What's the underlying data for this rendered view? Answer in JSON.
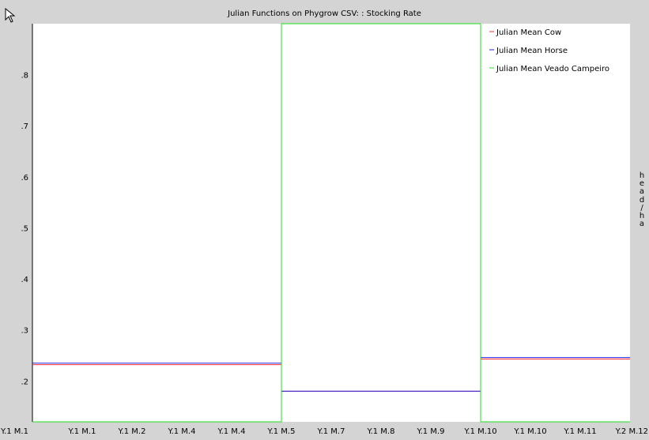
{
  "window": {
    "title": "Julian Functions on Phygrow CSV: : Stocking Rate"
  },
  "chart_data": {
    "type": "line",
    "title": "Julian Functions on Phygrow CSV: : Stocking Rate",
    "xlabel": "",
    "ylabel": "head/ha",
    "x_tick_labels": [
      "Y.1 M.1",
      "Y.1 M.1",
      "Y.1 M.2",
      "Y.1 M.4",
      "Y.1 M.4",
      "Y.1 M.5",
      "Y.1 M.7",
      "Y.1 M.8",
      "Y.1 M.9",
      "Y.1 M.10",
      "Y.1 M.10",
      "Y.1 M.11",
      "Y.2 M.12"
    ],
    "y_ticks": [
      0.2,
      0.3,
      0.4,
      0.5,
      0.6,
      0.7,
      0.8
    ],
    "y_tick_labels": [
      ".2",
      ".3",
      ".4",
      ".5",
      ".6",
      ".7",
      ".8"
    ],
    "xlim": [
      0,
      12
    ],
    "ylim": [
      0.12,
      0.9
    ],
    "grid": false,
    "legend_position": "top-right",
    "series": [
      {
        "name": "Julian Mean Cow",
        "color": "#ff3030",
        "points": [
          [
            0,
            0.232
          ],
          [
            5.0,
            0.232
          ],
          [
            5.0,
            0.18
          ],
          [
            9.0,
            0.18
          ],
          [
            9.0,
            0.243
          ],
          [
            12,
            0.243
          ]
        ]
      },
      {
        "name": "Julian Mean Horse",
        "color": "#2020e0",
        "points": [
          [
            0,
            0.235
          ],
          [
            5.0,
            0.235
          ],
          [
            5.0,
            0.18
          ],
          [
            9.0,
            0.18
          ],
          [
            9.0,
            0.246
          ],
          [
            12,
            0.246
          ]
        ]
      },
      {
        "name": "Julian Mean Veado Campeiro",
        "color": "#20e020",
        "points": [
          [
            0,
            0.12
          ],
          [
            5.0,
            0.12
          ],
          [
            5.0,
            0.9
          ],
          [
            9.0,
            0.9
          ],
          [
            9.0,
            0.12
          ],
          [
            12,
            0.12
          ]
        ]
      }
    ]
  }
}
